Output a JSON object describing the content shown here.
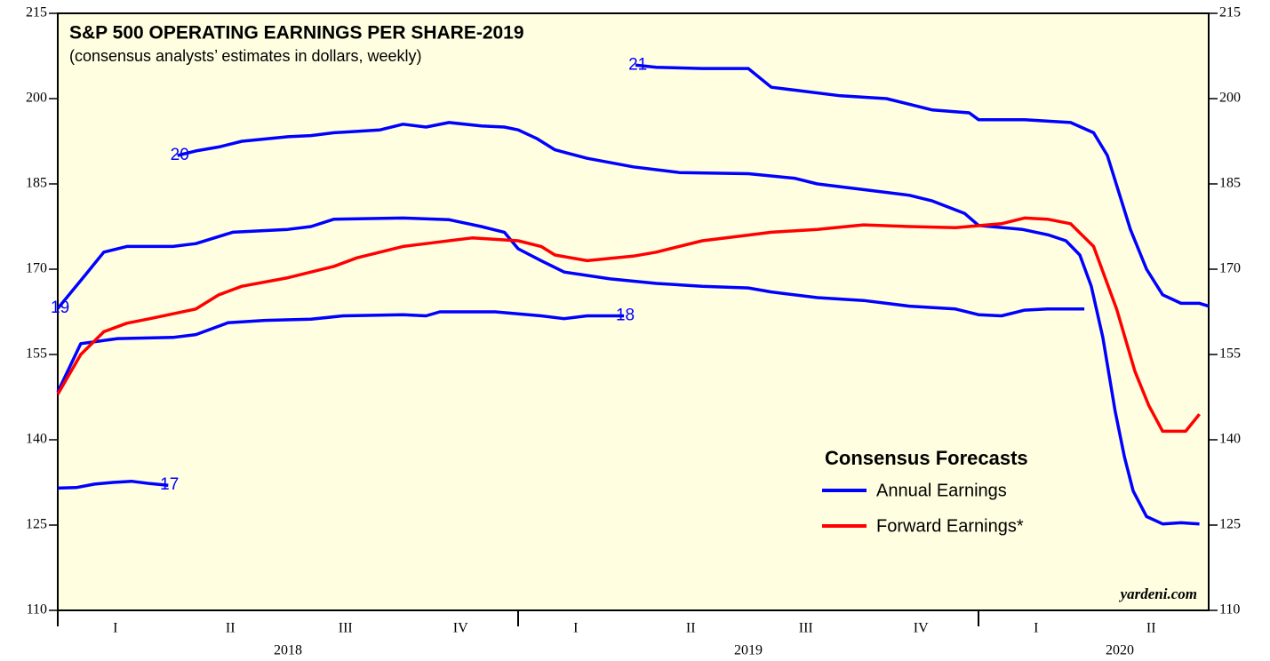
{
  "chart_data": {
    "type": "line",
    "title": "S&P 500 OPERATING EARNINGS PER SHARE-2019",
    "subtitle": "(consensus analysts’ estimates in dollars, weekly)",
    "source": "yardeni.com",
    "xlim": [
      2018,
      2020.5
    ],
    "xticks": [
      {
        "value": 2018.125,
        "label": "I"
      },
      {
        "value": 2018.375,
        "label": "II"
      },
      {
        "value": 2018.625,
        "label": "III"
      },
      {
        "value": 2018.875,
        "label": "IV"
      },
      {
        "value": 2019.125,
        "label": "I"
      },
      {
        "value": 2019.375,
        "label": "II"
      },
      {
        "value": 2019.625,
        "label": "III"
      },
      {
        "value": 2019.875,
        "label": "IV"
      },
      {
        "value": 2020.125,
        "label": "I"
      },
      {
        "value": 2020.375,
        "label": "II"
      }
    ],
    "year_labels": [
      {
        "value": 2018.5,
        "label": "2018"
      },
      {
        "value": 2019.5,
        "label": "2019"
      },
      {
        "value": 2020.5,
        "label": "2020"
      }
    ],
    "ylim": [
      110,
      215
    ],
    "yticks": [
      110,
      125,
      140,
      155,
      170,
      185,
      200,
      215
    ],
    "legend": {
      "title": "Consensus Forecasts",
      "annual_label": "Annual Earnings",
      "annual_color": "#0000ff"
    },
    "series": [
      {
        "name": "17",
        "color": "#0000ff",
        "x": [
          2018.0,
          2018.04,
          2018.08,
          2018.12,
          2018.16,
          2018.2,
          2018.24
        ],
        "values": [
          131.5,
          131.6,
          132.2,
          132.5,
          132.7,
          132.3,
          132.0
        ]
      },
      {
        "name": "18",
        "color": "#0000ff",
        "x": [
          2018.0,
          2018.05,
          2018.13,
          2018.25,
          2018.3,
          2018.37,
          2018.45,
          2018.55,
          2018.62,
          2018.75,
          2018.8,
          2018.83,
          2018.95,
          2019.05,
          2019.1,
          2019.15,
          2019.23
        ],
        "values": [
          148.4,
          156.9,
          157.8,
          158,
          158.5,
          160.6,
          161,
          161.2,
          161.8,
          162,
          161.8,
          162.5,
          162.5,
          161.8,
          161.3,
          161.8,
          161.8
        ]
      },
      {
        "name": "19",
        "color": "#0000ff",
        "x": [
          2018.0,
          2018.06,
          2018.1,
          2018.15,
          2018.25,
          2018.3,
          2018.38,
          2018.5,
          2018.55,
          2018.6,
          2018.75,
          2018.85,
          2018.92,
          2018.97,
          2019.0,
          2019.05,
          2019.1,
          2019.2,
          2019.3,
          2019.4,
          2019.5,
          2019.55,
          2019.65,
          2019.75,
          2019.85,
          2019.95,
          2020.0,
          2020.05,
          2020.1,
          2020.15,
          2020.23
        ],
        "values": [
          163.1,
          169,
          173,
          174,
          174,
          174.5,
          176.5,
          177,
          177.5,
          178.8,
          179,
          178.7,
          177.5,
          176.5,
          173.6,
          171.5,
          169.5,
          168.3,
          167.5,
          167,
          166.7,
          166,
          165,
          164.5,
          163.5,
          163,
          162,
          161.8,
          162.8,
          163,
          163
        ]
      },
      {
        "name": "20",
        "color": "#0000ff",
        "x": [
          2018.26,
          2018.3,
          2018.35,
          2018.4,
          2018.5,
          2018.55,
          2018.6,
          2018.7,
          2018.75,
          2018.8,
          2018.85,
          2018.92,
          2018.97,
          2019.0,
          2019.04,
          2019.08,
          2019.15,
          2019.25,
          2019.3,
          2019.35,
          2019.5,
          2019.6,
          2019.65,
          2019.75,
          2019.85,
          2019.9,
          2019.97,
          2020.0,
          2020.095,
          2020.153,
          2020.19,
          2020.22,
          2020.245,
          2020.27,
          2020.297,
          2020.317,
          2020.336,
          2020.365,
          2020.4,
          2020.44,
          2020.48
        ],
        "values": [
          190,
          190.8,
          191.5,
          192.5,
          193.3,
          193.5,
          194,
          194.5,
          195.5,
          195,
          195.8,
          195.2,
          195,
          194.5,
          193,
          191,
          189.5,
          188,
          187.5,
          187,
          186.8,
          186,
          185,
          184,
          183,
          182,
          179.8,
          177.7,
          177,
          176,
          175,
          172.5,
          167,
          158,
          145,
          137,
          131,
          126.5,
          125.2,
          125.4,
          125.2
        ]
      },
      {
        "name": "21",
        "color": "#0000ff",
        "x": [
          2019.255,
          2019.3,
          2019.4,
          2019.5,
          2019.55,
          2019.6,
          2019.7,
          2019.8,
          2019.9,
          2019.98,
          2020.0,
          2020.1,
          2020.2,
          2020.25,
          2020.28,
          2020.33,
          2020.365,
          2020.4,
          2020.44,
          2020.48,
          2020.5
        ],
        "values": [
          205.9,
          205.5,
          205.3,
          205.3,
          202,
          201.5,
          200.5,
          200,
          198,
          197.5,
          196.3,
          196.3,
          195.8,
          194,
          190,
          177,
          170,
          165.5,
          164,
          164,
          163.5
        ]
      },
      {
        "name": "Forward Earnings*",
        "color": "#ff0000",
        "x": [
          2018.0,
          2018.05,
          2018.1,
          2018.15,
          2018.2,
          2018.3,
          2018.35,
          2018.4,
          2018.5,
          2018.6,
          2018.65,
          2018.75,
          2018.8,
          2018.9,
          2019.0,
          2019.05,
          2019.08,
          2019.15,
          2019.25,
          2019.3,
          2019.4,
          2019.5,
          2019.55,
          2019.65,
          2019.75,
          2019.85,
          2019.95,
          2020.05,
          2020.1,
          2020.15,
          2020.2,
          2020.25,
          2020.3,
          2020.34,
          2020.37,
          2020.4,
          2020.45,
          2020.48
        ],
        "values": [
          148,
          155,
          159,
          160.5,
          161.3,
          163,
          165.5,
          167,
          168.5,
          170.5,
          172,
          174,
          174.5,
          175.5,
          175,
          174,
          172.5,
          171.5,
          172.3,
          173,
          175,
          176,
          176.5,
          177,
          177.8,
          177.5,
          177.3,
          178,
          179,
          178.8,
          178,
          174,
          163,
          152,
          146,
          141.5,
          141.5,
          144.5
        ]
      }
    ]
  }
}
